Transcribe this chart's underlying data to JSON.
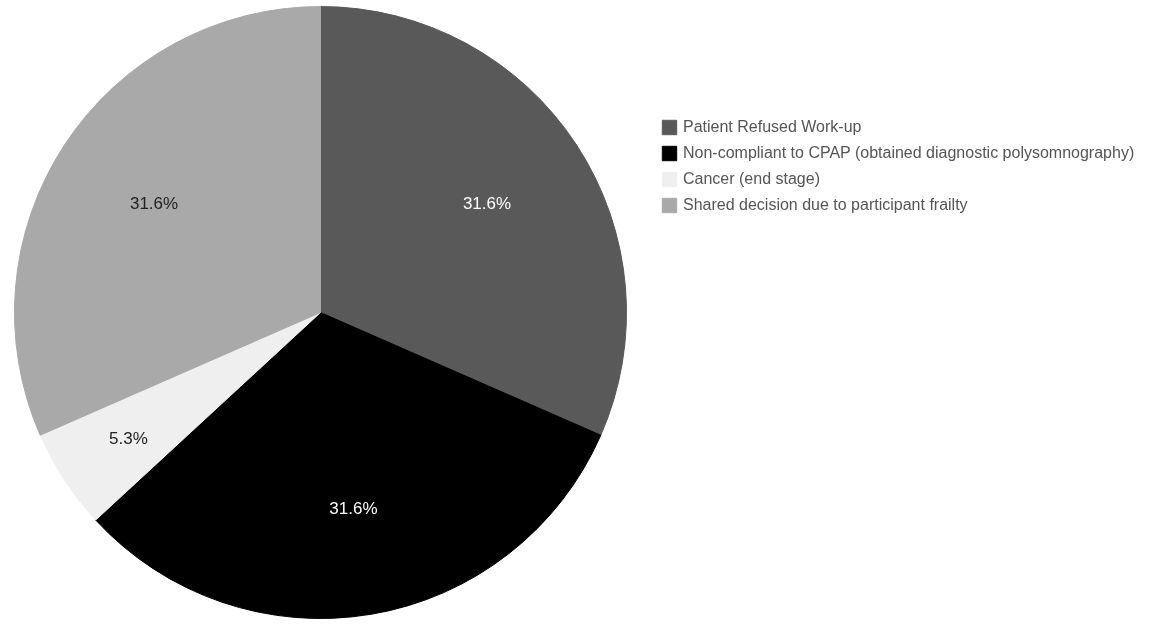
{
  "chart_data": {
    "type": "pie",
    "categories": [
      "Patient Refused Work-up",
      "Non-compliant to CPAP (obtained diagnostic polysomnography)",
      "Cancer (end stage)",
      "Shared decision due to participant frailty"
    ],
    "values": [
      31.6,
      31.6,
      5.3,
      31.6
    ],
    "colors": [
      "#595959",
      "#000000",
      "#efefef",
      "#a9a9a9"
    ],
    "value_labels": [
      "31.6%",
      "31.6%",
      "5.3%",
      "31.6%"
    ],
    "legend": "top right"
  }
}
